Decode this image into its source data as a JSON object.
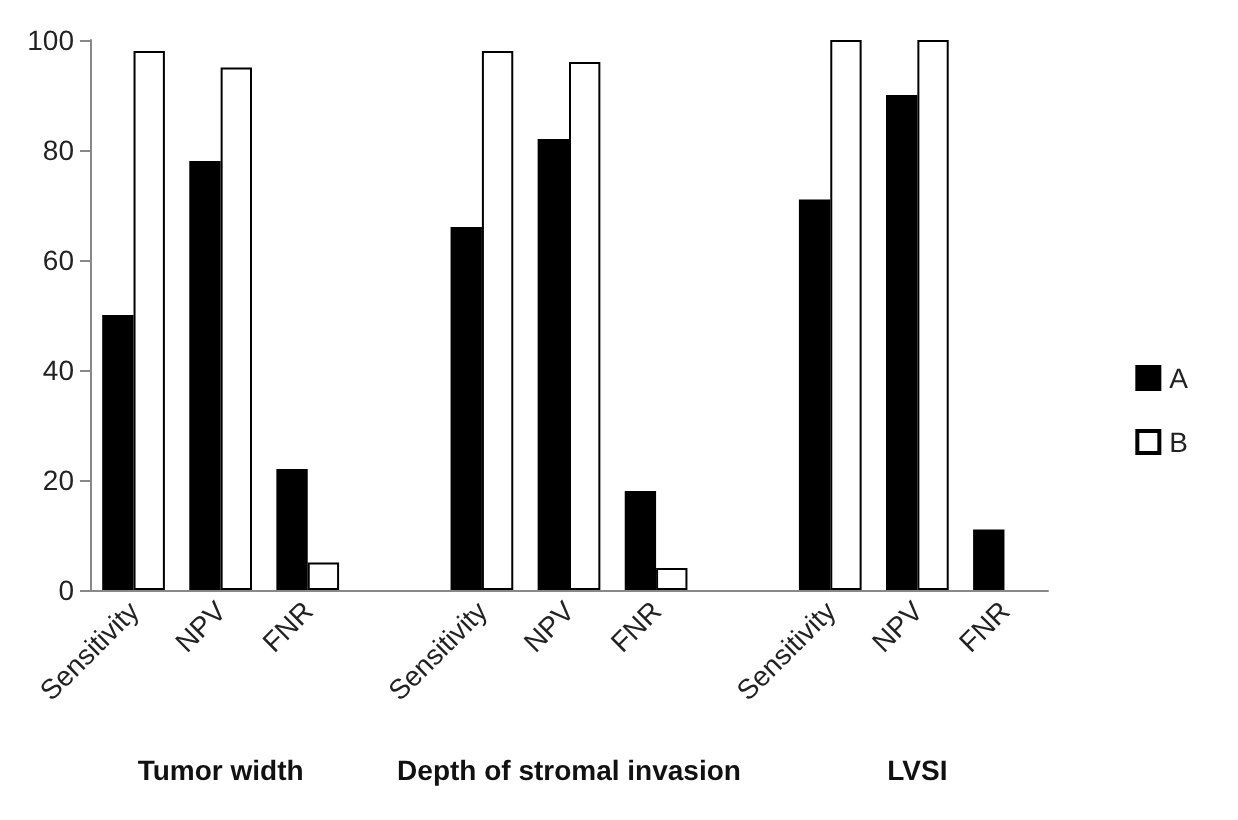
{
  "chart_data": {
    "type": "bar",
    "categories": [
      "Sensitivity",
      "NPV",
      "FNR",
      null,
      "Sensitivity",
      "NPV",
      "FNR",
      null,
      "Sensitivity",
      "NPV",
      "FNR"
    ],
    "series": [
      {
        "name": "A",
        "color": "#000000",
        "values": [
          50,
          78,
          22,
          null,
          66,
          82,
          18,
          null,
          71,
          90,
          11
        ]
      },
      {
        "name": "B",
        "color": "#ffffff",
        "values": [
          98,
          95,
          5,
          null,
          98,
          96,
          4,
          null,
          100,
          100,
          null
        ]
      }
    ],
    "ylim": [
      0,
      100
    ],
    "yticks": [
      0,
      20,
      40,
      60,
      80,
      100
    ],
    "grid": false,
    "legend": "right",
    "annotations": [
      "Tumor width",
      "Depth of stromal invasion",
      "LVSI"
    ]
  }
}
